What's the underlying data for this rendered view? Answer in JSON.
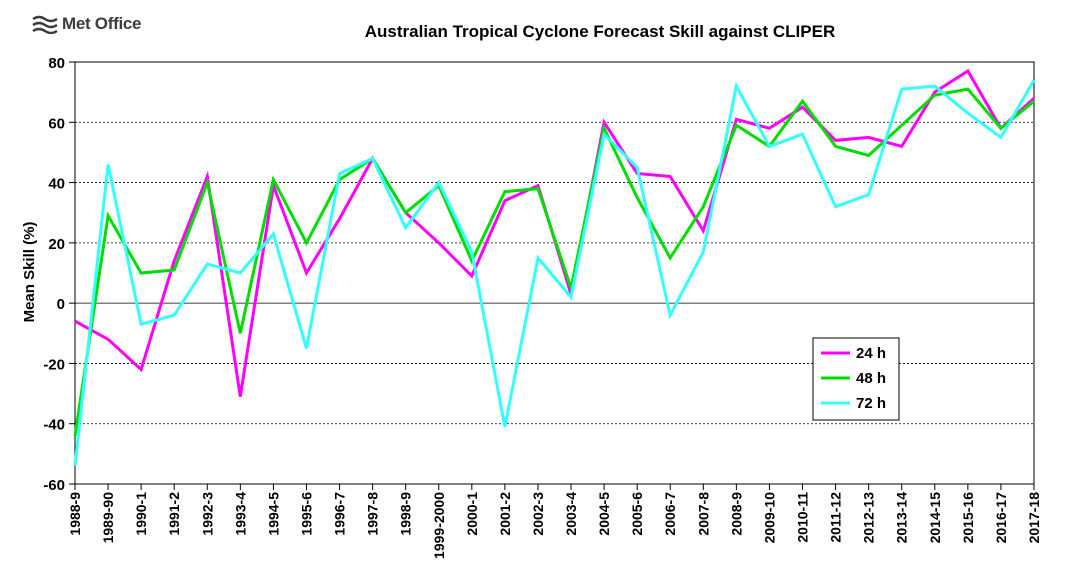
{
  "logo": {
    "text": "Met Office"
  },
  "chart_data": {
    "type": "line",
    "title": "Australian Tropical Cyclone Forecast Skill against CLIPER",
    "ylabel": "Mean Skill (%)",
    "xlabel": "",
    "ylim": [
      -60,
      80
    ],
    "yticks": [
      -60,
      -40,
      -20,
      0,
      20,
      40,
      60,
      80
    ],
    "grid": "horizontal dashed",
    "legend_position": "lower-right",
    "categories": [
      "1988-9",
      "1989-90",
      "1990-1",
      "1991-2",
      "1992-3",
      "1993-4",
      "1994-5",
      "1995-6",
      "1996-7",
      "1997-8",
      "1998-9",
      "1999-2000",
      "2000-1",
      "2001-2",
      "2002-3",
      "2003-4",
      "2004-5",
      "2005-6",
      "2006-7",
      "2007-8",
      "2008-9",
      "2009-10",
      "2010-11",
      "2011-12",
      "2012-13",
      "2013-14",
      "2014-15",
      "2015-16",
      "2016-17",
      "2017-18"
    ],
    "series": [
      {
        "name": "24 h",
        "color": "#ff00ff",
        "values": [
          -6,
          -12,
          -22,
          14,
          42,
          -31,
          39,
          10,
          28,
          48,
          30,
          20,
          9,
          34,
          39,
          3,
          60,
          43,
          42,
          24,
          61,
          58,
          65,
          54,
          55,
          52,
          70,
          77,
          58,
          68
        ]
      },
      {
        "name": "48 h",
        "color": "#00dd00",
        "values": [
          -44,
          29,
          10,
          11,
          40,
          -10,
          41,
          20,
          41,
          48,
          30,
          39,
          14,
          37,
          38,
          5,
          58,
          35,
          15,
          32,
          59,
          52,
          67,
          52,
          49,
          59,
          69,
          71,
          58,
          67
        ]
      },
      {
        "name": "72 h",
        "color": "#33ffff",
        "values": [
          -54,
          46,
          -7,
          -4,
          13,
          10,
          23,
          -15,
          43,
          48,
          25,
          40,
          17,
          -41,
          15,
          2,
          56,
          45,
          -4,
          17,
          72,
          52,
          56,
          32,
          36,
          71,
          72,
          63,
          55,
          74
        ]
      }
    ]
  }
}
